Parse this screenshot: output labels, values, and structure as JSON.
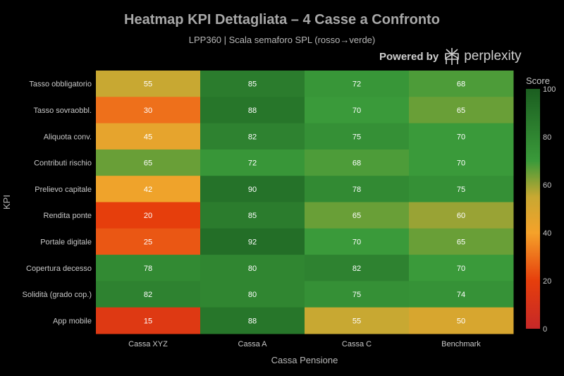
{
  "header": {
    "title": "Heatmap KPI Dettagliata – 4 Casse a Confronto",
    "subtitle": "LPP360 | Scala semaforo SPL (rosso→verde)",
    "brand_prefix": "Powered by",
    "brand_name": "perplexity",
    "brand_icon": "perplexity-logo-icon"
  },
  "chart_data": {
    "type": "heatmap",
    "xlabel": "Cassa Pensione",
    "ylabel": "KPI",
    "x": [
      "Cassa XYZ",
      "Cassa A",
      "Cassa C",
      "Benchmark"
    ],
    "y": [
      "Tasso obbligatorio",
      "Tasso sovraobbl.",
      "Aliquota conv.",
      "Contributi rischio",
      "Prelievo capitale",
      "Rendita ponte",
      "Portale digitale",
      "Copertura decesso",
      "Solidità (grado cop.)",
      "App mobile"
    ],
    "z": [
      [
        55,
        85,
        72,
        68
      ],
      [
        30,
        88,
        70,
        65
      ],
      [
        45,
        82,
        75,
        70
      ],
      [
        65,
        72,
        68,
        70
      ],
      [
        42,
        90,
        78,
        75
      ],
      [
        20,
        85,
        65,
        60
      ],
      [
        25,
        92,
        70,
        65
      ],
      [
        78,
        80,
        82,
        70
      ],
      [
        82,
        80,
        75,
        74
      ],
      [
        15,
        88,
        55,
        50
      ]
    ],
    "show_values": true,
    "colorbar": {
      "title": "Score",
      "range": [
        0,
        100
      ],
      "ticks": [
        0,
        20,
        40,
        60,
        80,
        100
      ]
    },
    "colorscale": [
      [
        0,
        "#c62828"
      ],
      [
        0.2,
        "#e63e0c"
      ],
      [
        0.4,
        "#f5a22a"
      ],
      [
        0.55,
        "#c8a832"
      ],
      [
        0.7,
        "#3a9a3a"
      ],
      [
        1,
        "#1b5e20"
      ]
    ]
  }
}
